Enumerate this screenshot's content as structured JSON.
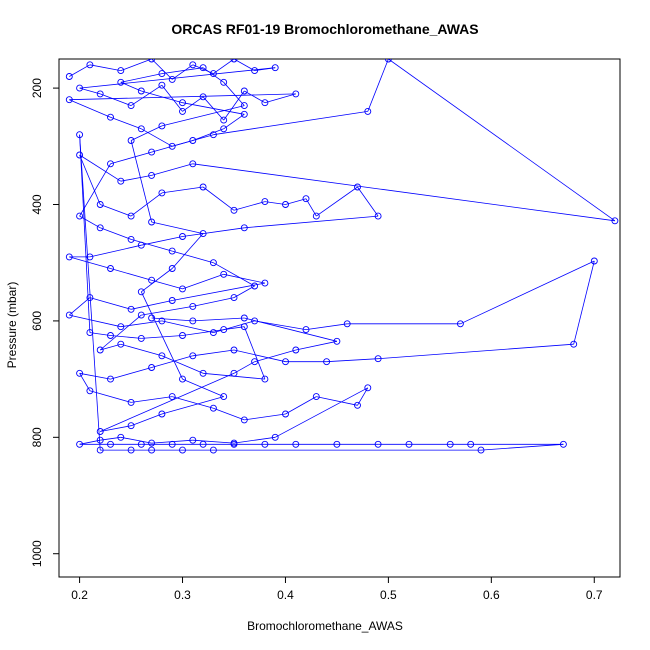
{
  "chart_data": {
    "type": "scatter",
    "title": "ORCAS RF01-19 Bromochloromethane_AWAS",
    "xlabel": "Bromochloromethane_AWAS",
    "ylabel": "Pressure (mbar)",
    "xlim": [
      0.18,
      0.725
    ],
    "ylim": [
      1040,
      150
    ],
    "y_reversed": true,
    "xticks": [
      0.2,
      0.3,
      0.4,
      0.5,
      0.6,
      0.7
    ],
    "xtick_labels": [
      "0.2",
      "0.3",
      "0.4",
      "0.5",
      "0.6",
      "0.7"
    ],
    "yticks": [
      200,
      400,
      600,
      800,
      1000
    ],
    "ytick_labels": [
      "200",
      "400",
      "600",
      "800",
      "1000"
    ],
    "grid": false,
    "legend": "none",
    "color": "#0000ff",
    "series": [
      {
        "values": [
          [
            0.19,
            180
          ],
          [
            0.21,
            160
          ],
          [
            0.24,
            170
          ],
          [
            0.27,
            150
          ],
          [
            0.29,
            185
          ],
          [
            0.31,
            160
          ],
          [
            0.33,
            175
          ],
          [
            0.35,
            150
          ],
          [
            0.37,
            170
          ],
          [
            0.39,
            165
          ],
          [
            0.2,
            200
          ],
          [
            0.22,
            210
          ],
          [
            0.25,
            230
          ],
          [
            0.28,
            195
          ],
          [
            0.3,
            240
          ],
          [
            0.32,
            215
          ],
          [
            0.34,
            255
          ],
          [
            0.36,
            205
          ],
          [
            0.38,
            225
          ],
          [
            0.41,
            210
          ],
          [
            0.19,
            220
          ],
          [
            0.23,
            250
          ],
          [
            0.26,
            270
          ],
          [
            0.29,
            300
          ],
          [
            0.33,
            280
          ],
          [
            0.48,
            240
          ],
          [
            0.5,
            150
          ],
          [
            0.72,
            428
          ],
          [
            0.31,
            330
          ],
          [
            0.27,
            350
          ],
          [
            0.24,
            360
          ],
          [
            0.2,
            315
          ],
          [
            0.22,
            400
          ],
          [
            0.25,
            420
          ],
          [
            0.28,
            380
          ],
          [
            0.32,
            370
          ],
          [
            0.35,
            410
          ],
          [
            0.38,
            395
          ],
          [
            0.4,
            400
          ],
          [
            0.42,
            390
          ],
          [
            0.43,
            420
          ],
          [
            0.47,
            370
          ],
          [
            0.49,
            420
          ],
          [
            0.36,
            440
          ],
          [
            0.3,
            455
          ],
          [
            0.26,
            470
          ],
          [
            0.21,
            490
          ],
          [
            0.19,
            490
          ],
          [
            0.23,
            510
          ],
          [
            0.27,
            530
          ],
          [
            0.3,
            545
          ],
          [
            0.34,
            520
          ],
          [
            0.38,
            535
          ],
          [
            0.29,
            565
          ],
          [
            0.25,
            580
          ],
          [
            0.21,
            560
          ],
          [
            0.19,
            590
          ],
          [
            0.24,
            610
          ],
          [
            0.28,
            600
          ],
          [
            0.33,
            620
          ],
          [
            0.37,
            600
          ],
          [
            0.42,
            615
          ],
          [
            0.46,
            605
          ],
          [
            0.57,
            605
          ],
          [
            0.7,
            497
          ],
          [
            0.68,
            640
          ],
          [
            0.49,
            665
          ],
          [
            0.44,
            670
          ],
          [
            0.4,
            670
          ],
          [
            0.35,
            650
          ],
          [
            0.31,
            660
          ],
          [
            0.27,
            680
          ],
          [
            0.23,
            700
          ],
          [
            0.2,
            690
          ],
          [
            0.21,
            720
          ],
          [
            0.25,
            740
          ],
          [
            0.29,
            730
          ],
          [
            0.33,
            750
          ],
          [
            0.36,
            770
          ],
          [
            0.4,
            760
          ],
          [
            0.43,
            730
          ],
          [
            0.47,
            745
          ],
          [
            0.48,
            715
          ],
          [
            0.39,
            800
          ],
          [
            0.35,
            810
          ],
          [
            0.31,
            805
          ],
          [
            0.27,
            810
          ],
          [
            0.24,
            800
          ],
          [
            0.22,
            805
          ],
          [
            0.2,
            812
          ],
          [
            0.23,
            812
          ],
          [
            0.26,
            812
          ],
          [
            0.29,
            812
          ],
          [
            0.32,
            812
          ],
          [
            0.35,
            812
          ],
          [
            0.38,
            812
          ],
          [
            0.41,
            812
          ],
          [
            0.45,
            812
          ],
          [
            0.49,
            812
          ],
          [
            0.52,
            812
          ],
          [
            0.56,
            812
          ],
          [
            0.58,
            812
          ],
          [
            0.67,
            812
          ],
          [
            0.59,
            822
          ],
          [
            0.33,
            822
          ],
          [
            0.3,
            822
          ],
          [
            0.27,
            822
          ],
          [
            0.25,
            822
          ],
          [
            0.22,
            822
          ],
          [
            0.2,
            280
          ],
          [
            0.21,
            620
          ],
          [
            0.23,
            625
          ],
          [
            0.26,
            630
          ],
          [
            0.3,
            625
          ],
          [
            0.34,
            615
          ],
          [
            0.36,
            610
          ],
          [
            0.38,
            700
          ],
          [
            0.32,
            690
          ],
          [
            0.28,
            660
          ],
          [
            0.24,
            640
          ],
          [
            0.22,
            650
          ],
          [
            0.26,
            590
          ],
          [
            0.31,
            575
          ],
          [
            0.35,
            560
          ],
          [
            0.37,
            540
          ],
          [
            0.33,
            500
          ],
          [
            0.29,
            480
          ],
          [
            0.25,
            460
          ],
          [
            0.22,
            440
          ],
          [
            0.2,
            420
          ],
          [
            0.23,
            330
          ],
          [
            0.27,
            310
          ],
          [
            0.31,
            290
          ],
          [
            0.34,
            270
          ],
          [
            0.36,
            245
          ],
          [
            0.3,
            225
          ],
          [
            0.26,
            205
          ],
          [
            0.24,
            190
          ],
          [
            0.28,
            175
          ],
          [
            0.32,
            165
          ],
          [
            0.34,
            190
          ],
          [
            0.36,
            230
          ],
          [
            0.28,
            265
          ],
          [
            0.25,
            290
          ],
          [
            0.27,
            430
          ],
          [
            0.32,
            450
          ],
          [
            0.29,
            510
          ],
          [
            0.26,
            550
          ],
          [
            0.3,
            700
          ],
          [
            0.34,
            730
          ],
          [
            0.28,
            760
          ],
          [
            0.25,
            780
          ],
          [
            0.22,
            790
          ],
          [
            0.35,
            690
          ],
          [
            0.37,
            670
          ],
          [
            0.41,
            650
          ],
          [
            0.45,
            635
          ],
          [
            0.36,
            595
          ],
          [
            0.31,
            600
          ],
          [
            0.27,
            595
          ]
        ]
      }
    ]
  }
}
